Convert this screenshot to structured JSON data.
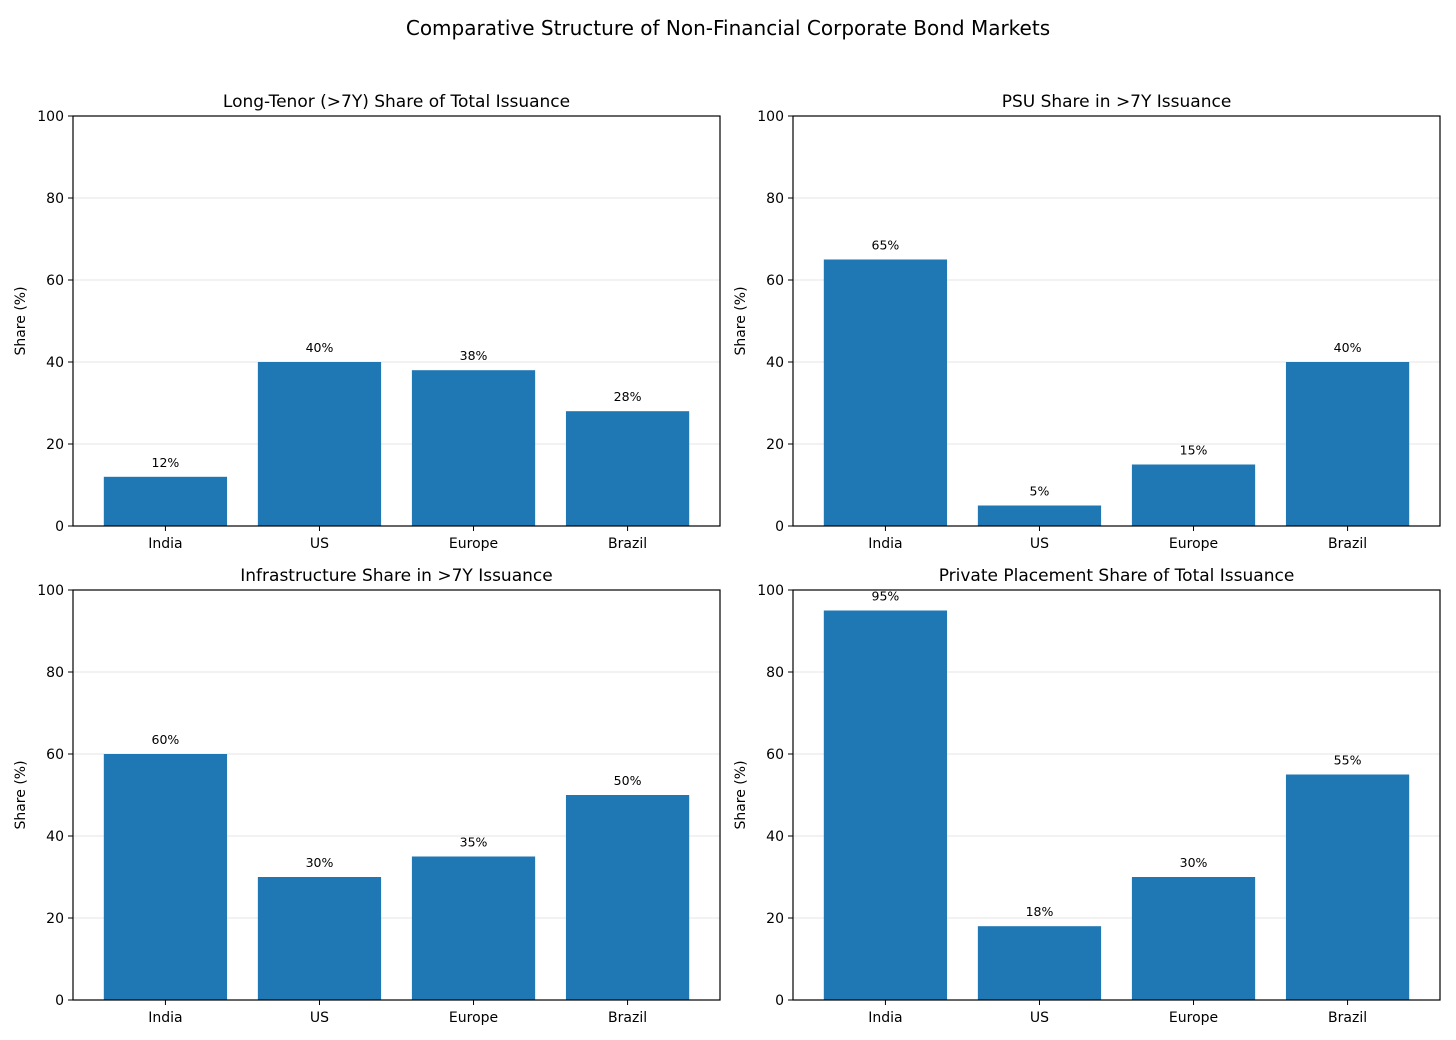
{
  "figure_title": "Comparative Structure of Non-Financial Corporate Bond Markets",
  "colors": {
    "bar": "#1f77b4",
    "grid": "#e6e6e6",
    "axis": "#000000"
  },
  "chart_data": [
    {
      "type": "bar",
      "title": "Long-Tenor (>7Y) Share of Total Issuance",
      "categories": [
        "India",
        "US",
        "Europe",
        "Brazil"
      ],
      "values": [
        12,
        40,
        38,
        28
      ],
      "value_labels": [
        "12%",
        "40%",
        "38%",
        "28%"
      ],
      "xlabel": "",
      "ylabel": "Share (%)",
      "ylim": [
        0,
        100
      ],
      "yticks": [
        0,
        20,
        40,
        60,
        80,
        100
      ],
      "grid": "y"
    },
    {
      "type": "bar",
      "title": "PSU Share in >7Y Issuance",
      "categories": [
        "India",
        "US",
        "Europe",
        "Brazil"
      ],
      "values": [
        65,
        5,
        15,
        40
      ],
      "value_labels": [
        "65%",
        "5%",
        "15%",
        "40%"
      ],
      "xlabel": "",
      "ylabel": "Share (%)",
      "ylim": [
        0,
        100
      ],
      "yticks": [
        0,
        20,
        40,
        60,
        80,
        100
      ],
      "grid": "y"
    },
    {
      "type": "bar",
      "title": "Infrastructure Share in >7Y Issuance",
      "categories": [
        "India",
        "US",
        "Europe",
        "Brazil"
      ],
      "values": [
        60,
        30,
        35,
        50
      ],
      "value_labels": [
        "60%",
        "30%",
        "35%",
        "50%"
      ],
      "xlabel": "",
      "ylabel": "Share (%)",
      "ylim": [
        0,
        100
      ],
      "yticks": [
        0,
        20,
        40,
        60,
        80,
        100
      ],
      "grid": "y"
    },
    {
      "type": "bar",
      "title": "Private Placement Share of Total Issuance",
      "categories": [
        "India",
        "US",
        "Europe",
        "Brazil"
      ],
      "values": [
        95,
        18,
        30,
        55
      ],
      "value_labels": [
        "95%",
        "18%",
        "30%",
        "55%"
      ],
      "xlabel": "",
      "ylabel": "Share (%)",
      "ylim": [
        0,
        100
      ],
      "yticks": [
        0,
        20,
        40,
        60,
        80,
        100
      ],
      "grid": "y"
    }
  ]
}
